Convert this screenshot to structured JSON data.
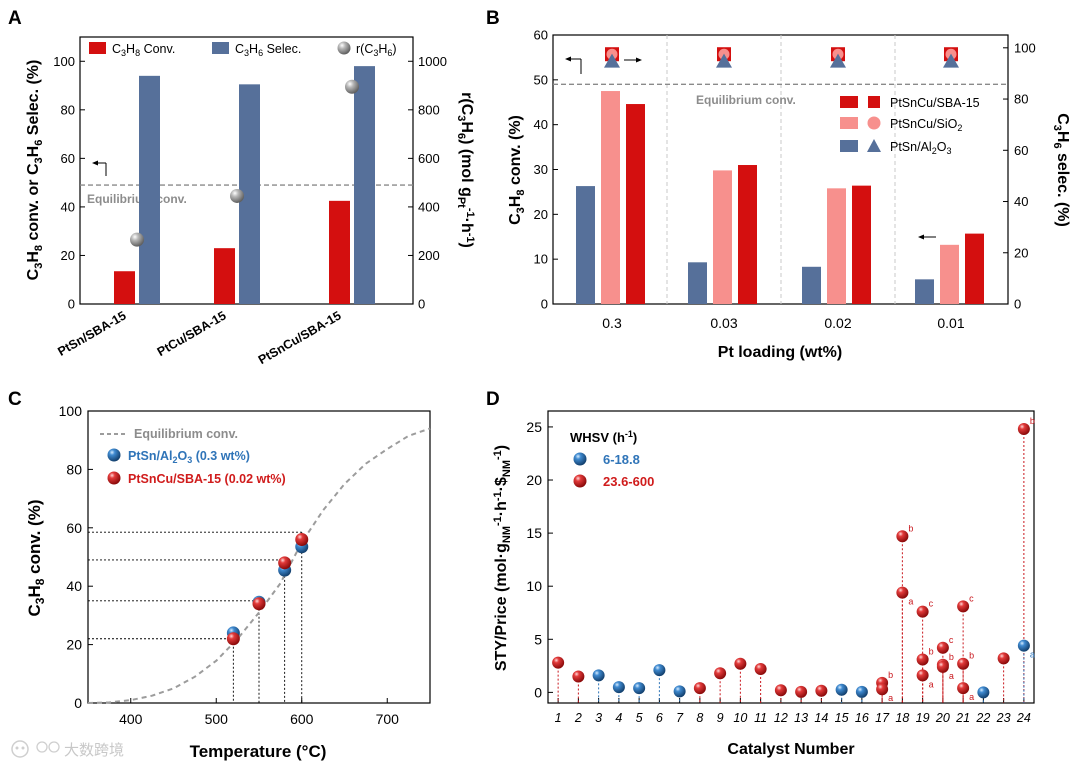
{
  "watermark": "大数跨境",
  "panels": {
    "A": {
      "letter": "A",
      "legend": [
        "C3H8 Conv.",
        "C3H6 Selec.",
        "r(C3H6)"
      ],
      "y1_title": "C3H8 conv. or C3H6 Selec. (%)",
      "y2_title": "r(C3H6) (mol gPt-1 h-1)",
      "equilibrium_label": "Equilibrium conv."
    },
    "B": {
      "letter": "B",
      "legend": [
        "PtSnCu/SBA-15",
        "PtSnCu/SiO2",
        "PtSn/Al2O3"
      ],
      "y1_title": "C3H8 conv. (%)",
      "y2_title": "C3H6 selec. (%)",
      "xlabel": "Pt loading (wt%)",
      "equilibrium_label": "Equilibrium conv."
    },
    "C": {
      "letter": "C",
      "legend": [
        "Equilibrium conv.",
        "PtSn/Al2O3 (0.3 wt%)",
        "PtSnCu/SBA-15 (0.02 wt%)"
      ],
      "ylabel": "C3H8 conv. (%)",
      "xlabel": "Temperature (°C)"
    },
    "D": {
      "letter": "D",
      "legend_title": "WHSV (h-1)",
      "legend": [
        "6-18.8",
        "23.6-600"
      ],
      "ylabel": "STY/Price (mol·gNM-1·h-1·$NM-1)",
      "xlabel": "Catalyst Number"
    }
  },
  "colors": {
    "red": "#d40f0f",
    "blue": "#56709a",
    "pink": "#f7908d",
    "gray": "#a8a8a8",
    "sphere_red": "#c9181e",
    "sphere_blue": "#2f74b8",
    "legend_blue_text": "#2f74b8",
    "legend_red_text": "#d01c1c"
  },
  "chart_data": [
    {
      "panel": "A",
      "type": "bar",
      "categories": [
        "PtSn/SBA-15",
        "PtCu/SBA-15",
        "PtSnCu/SBA-15"
      ],
      "series": [
        {
          "name": "C3H8 Conv.",
          "axis": "left",
          "values": [
            13.5,
            23,
            42.5
          ]
        },
        {
          "name": "C3H6 Selec.",
          "axis": "left",
          "values": [
            94,
            90.5,
            98
          ]
        },
        {
          "name": "r(C3H6)",
          "axis": "right",
          "kind": "scatter",
          "values": [
            265,
            445,
            895
          ]
        }
      ],
      "equilibrium": 49,
      "ylim": [
        0,
        110
      ],
      "y2lim": [
        0,
        1100
      ],
      "yticks": [
        0,
        20,
        40,
        60,
        80,
        100
      ],
      "y2ticks": [
        0,
        200,
        400,
        600,
        800,
        1000
      ]
    },
    {
      "panel": "B",
      "type": "bar",
      "categories": [
        "0.3",
        "0.03",
        "0.02",
        "0.01"
      ],
      "series": [
        {
          "name": "PtSn/Al2O3",
          "axis": "left",
          "values": [
            26.3,
            9.3,
            8.3,
            5.5
          ]
        },
        {
          "name": "PtSnCu/SiO2",
          "axis": "left",
          "values": [
            47.5,
            29.8,
            25.8,
            13.2
          ]
        },
        {
          "name": "PtSnCu/SBA-15",
          "axis": "left",
          "values": [
            44.6,
            31,
            26.4,
            15.7
          ]
        },
        {
          "name": "PtSnCu/SBA-15 selec.",
          "axis": "right",
          "kind": "marker",
          "values": [
            97.5,
            97.5,
            97.5,
            97.5
          ]
        },
        {
          "name": "PtSnCu/SiO2 selec.",
          "axis": "right",
          "kind": "marker",
          "values": [
            97.5,
            97.5,
            97.5,
            97.5
          ]
        },
        {
          "name": "PtSn/Al2O3 selec.",
          "axis": "right",
          "kind": "marker",
          "values": [
            95,
            95,
            95,
            95
          ]
        }
      ],
      "equilibrium": 49,
      "ylim": [
        0,
        60
      ],
      "y2lim": [
        0,
        105
      ],
      "yticks": [
        0,
        10,
        20,
        30,
        40,
        50,
        60
      ],
      "y2ticks": [
        0,
        20,
        40,
        60,
        80,
        100
      ]
    },
    {
      "panel": "C",
      "type": "scatter",
      "equilibrium_curve": {
        "x": [
          350,
          375,
          400,
          425,
          450,
          475,
          500,
          525,
          550,
          575,
          600,
          625,
          650,
          675,
          700,
          725,
          750
        ],
        "y": [
          0,
          0.2,
          1,
          2.5,
          5,
          9,
          14.5,
          22,
          31,
          41,
          55,
          66,
          75,
          82,
          87,
          91.5,
          94
        ]
      },
      "series": [
        {
          "name": "PtSn/Al2O3 (0.3 wt%)",
          "x": [
            520,
            550,
            580,
            600
          ],
          "y": [
            24,
            34.5,
            45.5,
            53.5
          ]
        },
        {
          "name": "PtSnCu/SBA-15 (0.02 wt%)",
          "x": [
            520,
            550,
            580,
            600
          ],
          "y": [
            22,
            34,
            48,
            56
          ]
        }
      ],
      "reference_levels": [
        22,
        35,
        49,
        58.5
      ],
      "xlim": [
        350,
        750
      ],
      "ylim": [
        0,
        100
      ],
      "xticks": [
        400,
        500,
        600,
        700
      ],
      "yticks": [
        0,
        20,
        40,
        60,
        80,
        100
      ]
    },
    {
      "panel": "D",
      "type": "scatter",
      "xlim": [
        0.5,
        24.5
      ],
      "ylim": [
        -1,
        26.5
      ],
      "xticks": [
        1,
        2,
        3,
        4,
        5,
        6,
        7,
        8,
        9,
        10,
        11,
        12,
        13,
        14,
        15,
        16,
        17,
        18,
        19,
        20,
        21,
        22,
        23,
        24
      ],
      "yticks": [
        0,
        5,
        10,
        15,
        20,
        25
      ],
      "points": [
        {
          "x": 1,
          "y": 2.8,
          "group": "23.6-600",
          "label": ""
        },
        {
          "x": 2,
          "y": 1.5,
          "group": "23.6-600",
          "label": ""
        },
        {
          "x": 3,
          "y": 1.6,
          "group": "6-18.8",
          "label": ""
        },
        {
          "x": 4,
          "y": 0.5,
          "group": "6-18.8",
          "label": ""
        },
        {
          "x": 5,
          "y": 0.4,
          "group": "6-18.8",
          "label": ""
        },
        {
          "x": 6,
          "y": 2.1,
          "group": "6-18.8",
          "label": ""
        },
        {
          "x": 7,
          "y": 0.1,
          "group": "6-18.8",
          "label": ""
        },
        {
          "x": 8,
          "y": 0.4,
          "group": "23.6-600",
          "label": ""
        },
        {
          "x": 9,
          "y": 1.8,
          "group": "23.6-600",
          "label": ""
        },
        {
          "x": 10,
          "y": 2.7,
          "group": "23.6-600",
          "label": ""
        },
        {
          "x": 11,
          "y": 2.2,
          "group": "23.6-600",
          "label": ""
        },
        {
          "x": 12,
          "y": 0.2,
          "group": "23.6-600",
          "label": ""
        },
        {
          "x": 13,
          "y": 0.05,
          "group": "23.6-600",
          "label": ""
        },
        {
          "x": 14,
          "y": 0.15,
          "group": "23.6-600",
          "label": ""
        },
        {
          "x": 15,
          "y": 0.25,
          "group": "6-18.8",
          "label": ""
        },
        {
          "x": 16,
          "y": 0.05,
          "group": "6-18.8",
          "label": ""
        },
        {
          "x": 17,
          "y": 0.9,
          "group": "23.6-600",
          "label": "b"
        },
        {
          "x": 17,
          "y": 0.3,
          "group": "23.6-600",
          "label": "a"
        },
        {
          "x": 18,
          "y": 14.7,
          "group": "23.6-600",
          "label": "b"
        },
        {
          "x": 18,
          "y": 9.4,
          "group": "23.6-600",
          "label": "a"
        },
        {
          "x": 19,
          "y": 7.6,
          "group": "23.6-600",
          "label": "c"
        },
        {
          "x": 19,
          "y": 3.1,
          "group": "23.6-600",
          "label": "b"
        },
        {
          "x": 19,
          "y": 1.6,
          "group": "23.6-600",
          "label": "a"
        },
        {
          "x": 20,
          "y": 4.2,
          "group": "23.6-600",
          "label": "c"
        },
        {
          "x": 20,
          "y": 2.6,
          "group": "23.6-600",
          "label": "b"
        },
        {
          "x": 20,
          "y": 2.4,
          "group": "23.6-600",
          "label": "a"
        },
        {
          "x": 21,
          "y": 8.1,
          "group": "23.6-600",
          "label": "c"
        },
        {
          "x": 21,
          "y": 2.7,
          "group": "23.6-600",
          "label": "b"
        },
        {
          "x": 21,
          "y": 0.4,
          "group": "23.6-600",
          "label": "a"
        },
        {
          "x": 22,
          "y": 0.0,
          "group": "6-18.8",
          "label": ""
        },
        {
          "x": 23,
          "y": 3.2,
          "group": "23.6-600",
          "label": ""
        },
        {
          "x": 24,
          "y": 24.8,
          "group": "23.6-600",
          "label": "b"
        },
        {
          "x": 24,
          "y": 4.4,
          "group": "6-18.8",
          "label": "a"
        }
      ]
    }
  ]
}
